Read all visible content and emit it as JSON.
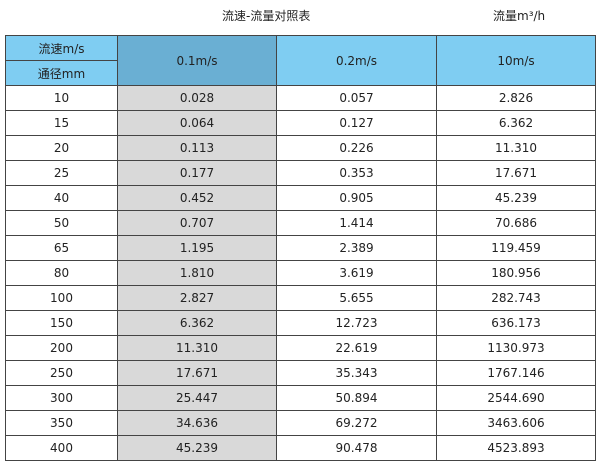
{
  "title": "流速-流量对照表",
  "unit": "流量m³/h",
  "header": {
    "velocity_label": "流速m/s",
    "diameter_label": "通径mm",
    "columns": [
      "0.1m/s",
      "0.2m/s",
      "10m/s"
    ]
  },
  "colors": {
    "header": "#7fcdf2",
    "selected_header": "#6aafd3",
    "highlight_column": "#d9d9d9"
  },
  "rows": [
    [
      "10",
      "0.028",
      "0.057",
      "2.826"
    ],
    [
      "15",
      "0.064",
      "0.127",
      "6.362"
    ],
    [
      "20",
      "0.113",
      "0.226",
      "11.310"
    ],
    [
      "25",
      "0.177",
      "0.353",
      "17.671"
    ],
    [
      "40",
      "0.452",
      "0.905",
      "45.239"
    ],
    [
      "50",
      "0.707",
      "1.414",
      "70.686"
    ],
    [
      "65",
      "1.195",
      "2.389",
      "119.459"
    ],
    [
      "80",
      "1.810",
      "3.619",
      "180.956"
    ],
    [
      "100",
      "2.827",
      "5.655",
      "282.743"
    ],
    [
      "150",
      "6.362",
      "12.723",
      "636.173"
    ],
    [
      "200",
      "11.310",
      "22.619",
      "1130.973"
    ],
    [
      "250",
      "17.671",
      "35.343",
      "1767.146"
    ],
    [
      "300",
      "25.447",
      "50.894",
      "2544.690"
    ],
    [
      "350",
      "34.636",
      "69.272",
      "3463.606"
    ],
    [
      "400",
      "45.239",
      "90.478",
      "4523.893"
    ]
  ]
}
